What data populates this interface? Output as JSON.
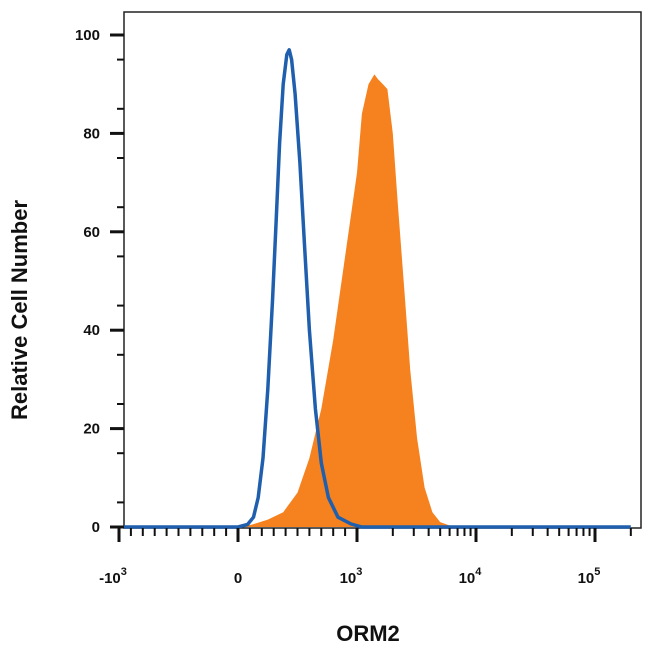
{
  "chart_data": {
    "type": "area",
    "xlabel": "ORM2",
    "ylabel": "Relative Cell Number",
    "xscale": "biexponential",
    "ylim": [
      0,
      100
    ],
    "y_ticks": [
      {
        "value": 0,
        "label": "0"
      },
      {
        "value": 20,
        "label": "20"
      },
      {
        "value": 40,
        "label": "40"
      },
      {
        "value": 60,
        "label": "60"
      },
      {
        "value": 80,
        "label": "80"
      },
      {
        "value": 100,
        "label": "100"
      }
    ],
    "x_ticks": [
      {
        "value": -1000,
        "base": "-10",
        "exp": "3"
      },
      {
        "value": 0,
        "base": "0",
        "exp": ""
      },
      {
        "value": 1000,
        "base": "10",
        "exp": "3"
      },
      {
        "value": 10000,
        "base": "10",
        "exp": "4"
      },
      {
        "value": 100000,
        "base": "10",
        "exp": "5"
      }
    ],
    "series": [
      {
        "style": "filled",
        "color": "#F5821F",
        "points": [
          [
            -200,
            0
          ],
          [
            0,
            0
          ],
          [
            120,
            0.5
          ],
          [
            250,
            1.5
          ],
          [
            380,
            3
          ],
          [
            500,
            7
          ],
          [
            600,
            14
          ],
          [
            700,
            24
          ],
          [
            800,
            38
          ],
          [
            900,
            55
          ],
          [
            1000,
            72
          ],
          [
            1100,
            84
          ],
          [
            1250,
            90
          ],
          [
            1400,
            92
          ],
          [
            1500,
            91
          ],
          [
            1650,
            90
          ],
          [
            1800,
            89
          ],
          [
            2000,
            80
          ],
          [
            2200,
            66
          ],
          [
            2500,
            48
          ],
          [
            2800,
            32
          ],
          [
            3200,
            18
          ],
          [
            3700,
            8
          ],
          [
            4300,
            3
          ],
          [
            5000,
            1
          ],
          [
            6000,
            0.3
          ],
          [
            8000,
            0
          ],
          [
            200000,
            0
          ]
        ]
      },
      {
        "style": "outline",
        "color": "#1F5FAD",
        "points": [
          [
            -2000,
            0
          ],
          [
            0,
            0
          ],
          [
            80,
            0.5
          ],
          [
            130,
            2
          ],
          [
            170,
            6
          ],
          [
            210,
            14
          ],
          [
            250,
            28
          ],
          [
            290,
            46
          ],
          [
            320,
            62
          ],
          [
            350,
            78
          ],
          [
            380,
            90
          ],
          [
            410,
            96
          ],
          [
            430,
            97
          ],
          [
            450,
            95
          ],
          [
            480,
            88
          ],
          [
            520,
            74
          ],
          [
            560,
            57
          ],
          [
            600,
            40
          ],
          [
            650,
            24
          ],
          [
            700,
            13
          ],
          [
            760,
            6
          ],
          [
            840,
            2
          ],
          [
            950,
            0.6
          ],
          [
            1100,
            0
          ],
          [
            200000,
            0
          ]
        ]
      }
    ]
  }
}
